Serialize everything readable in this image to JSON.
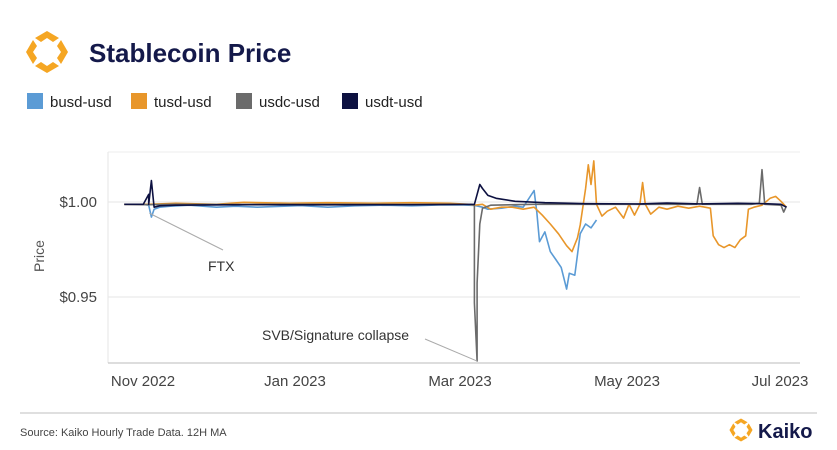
{
  "colors": {
    "busd": "#5b9bd5",
    "tusd": "#e8962a",
    "usdc": "#6b6b6b",
    "usdt": "#0d1141",
    "brand": "#f5a623",
    "title": "#14194a"
  },
  "brand": {
    "name": "Kaiko"
  },
  "source": "Source: Kaiko Hourly Trade Data. 12H MA",
  "chart_data": {
    "type": "line",
    "title": "Stablecoin Price",
    "ylabel": "Price",
    "xlabel": "",
    "ylim": [
      0.9195,
      1.0265
    ],
    "xlim": [
      "2022-10-26",
      "2023-07-08"
    ],
    "grid": true,
    "legend": "top-left",
    "yticks": [
      {
        "value": 1.0,
        "label": "$1.00"
      },
      {
        "value": 0.95,
        "label": "$0.95"
      }
    ],
    "xticks": [
      {
        "date": "2022-11-01",
        "label": "Nov 2022"
      },
      {
        "date": "2023-01-01",
        "label": "Jan 2023"
      },
      {
        "date": "2023-03-01",
        "label": "Mar 2023"
      },
      {
        "date": "2023-05-01",
        "label": "May 2023"
      },
      {
        "date": "2023-07-01",
        "label": "Jul 2023"
      }
    ],
    "annotations": [
      {
        "text": "FTX",
        "date": "2022-11-11",
        "value": 0.9995
      },
      {
        "text": "SVB/Signature collapse",
        "date": "2023-03-11",
        "value": 0.9205
      }
    ],
    "series": [
      {
        "name": "busd-usd",
        "color_key": "busd",
        "points": [
          [
            "2022-11-01",
            1.0
          ],
          [
            "2022-11-08",
            1.0
          ],
          [
            "2022-11-10",
            0.9995
          ],
          [
            "2022-11-11",
            0.9935
          ],
          [
            "2022-11-12",
            0.9975
          ],
          [
            "2022-11-14",
            0.9985
          ],
          [
            "2022-11-18",
            0.999
          ],
          [
            "2022-11-25",
            0.9995
          ],
          [
            "2022-12-05",
            0.9985
          ],
          [
            "2022-12-12",
            0.999
          ],
          [
            "2022-12-20",
            0.9985
          ],
          [
            "2023-01-05",
            0.9993
          ],
          [
            "2023-01-15",
            0.9985
          ],
          [
            "2023-01-25",
            0.9992
          ],
          [
            "2023-02-05",
            0.9995
          ],
          [
            "2023-02-15",
            0.9992
          ],
          [
            "2023-02-25",
            0.9996
          ],
          [
            "2023-03-05",
            0.9997
          ],
          [
            "2023-03-10",
            0.9994
          ],
          [
            "2023-03-13",
            0.9985
          ],
          [
            "2023-03-15",
            0.9975
          ],
          [
            "2023-03-20",
            0.998
          ],
          [
            "2023-03-25",
            0.999
          ],
          [
            "2023-03-28",
            0.9985
          ],
          [
            "2023-04-01",
            1.007
          ],
          [
            "2023-04-02",
            0.996
          ],
          [
            "2023-04-03",
            0.981
          ],
          [
            "2023-04-05",
            0.986
          ],
          [
            "2023-04-07",
            0.976
          ],
          [
            "2023-04-09",
            0.972
          ],
          [
            "2023-04-11",
            0.968
          ],
          [
            "2023-04-13",
            0.957
          ],
          [
            "2023-04-14",
            0.965
          ],
          [
            "2023-04-16",
            0.964
          ],
          [
            "2023-04-18",
            0.985
          ],
          [
            "2023-04-20",
            0.99
          ],
          [
            "2023-04-22",
            0.988
          ],
          [
            "2023-04-24",
            0.992
          ]
        ]
      },
      {
        "name": "tusd-usd",
        "color_key": "tusd",
        "points": [
          [
            "2022-11-01",
            1.0
          ],
          [
            "2022-11-10",
            1.0
          ],
          [
            "2022-11-20",
            1.0005
          ],
          [
            "2022-12-05",
            1.0
          ],
          [
            "2022-12-15",
            1.001
          ],
          [
            "2023-01-01",
            1.0005
          ],
          [
            "2023-01-15",
            1.0008
          ],
          [
            "2023-02-01",
            1.0005
          ],
          [
            "2023-02-15",
            1.0008
          ],
          [
            "2023-03-01",
            1.0005
          ],
          [
            "2023-03-08",
            1.0
          ],
          [
            "2023-03-10",
            0.9995
          ],
          [
            "2023-03-13",
            1.0
          ],
          [
            "2023-03-16",
            0.9975
          ],
          [
            "2023-03-20",
            0.9985
          ],
          [
            "2023-03-24",
            0.9985
          ],
          [
            "2023-03-28",
            0.9975
          ],
          [
            "2023-04-01",
            0.9985
          ],
          [
            "2023-04-04",
            0.9945
          ],
          [
            "2023-04-07",
            0.99
          ],
          [
            "2023-04-10",
            0.985
          ],
          [
            "2023-04-13",
            0.979
          ],
          [
            "2023-04-15",
            0.976
          ],
          [
            "2023-04-17",
            0.983
          ],
          [
            "2023-04-18",
            0.9895
          ],
          [
            "2023-04-20",
            1.008
          ],
          [
            "2023-04-21",
            1.02
          ],
          [
            "2023-04-22",
            1.01
          ],
          [
            "2023-04-23",
            1.022
          ],
          [
            "2023-04-24",
            1.0
          ],
          [
            "2023-04-26",
            0.994
          ],
          [
            "2023-04-28",
            0.9965
          ],
          [
            "2023-05-01",
            0.9985
          ],
          [
            "2023-05-04",
            0.993
          ],
          [
            "2023-05-06",
            1.0
          ],
          [
            "2023-05-08",
            0.9945
          ],
          [
            "2023-05-10",
            1.0
          ],
          [
            "2023-05-11",
            1.011
          ],
          [
            "2023-05-12",
            1.0
          ],
          [
            "2023-05-14",
            0.995
          ],
          [
            "2023-05-17",
            0.9985
          ],
          [
            "2023-05-20",
            0.9975
          ],
          [
            "2023-05-24",
            0.999
          ],
          [
            "2023-05-28",
            0.998
          ],
          [
            "2023-06-01",
            0.999
          ],
          [
            "2023-06-03",
            0.9985
          ],
          [
            "2023-06-05",
            0.998
          ],
          [
            "2023-06-06",
            0.984
          ],
          [
            "2023-06-08",
            0.9795
          ],
          [
            "2023-06-10",
            0.978
          ],
          [
            "2023-06-12",
            0.9795
          ],
          [
            "2023-06-14",
            0.978
          ],
          [
            "2023-06-16",
            0.982
          ],
          [
            "2023-06-18",
            0.984
          ],
          [
            "2023-06-19",
            0.9975
          ],
          [
            "2023-06-21",
            0.9985
          ],
          [
            "2023-06-24",
            0.9995
          ],
          [
            "2023-06-27",
            1.003
          ],
          [
            "2023-06-29",
            1.004
          ],
          [
            "2023-07-01",
            1.0015
          ],
          [
            "2023-07-03",
            0.9985
          ]
        ]
      },
      {
        "name": "usdc-usd",
        "color_key": "usdc",
        "points": [
          [
            "2022-11-01",
            1.0
          ],
          [
            "2022-11-10",
            0.9998
          ],
          [
            "2022-11-20",
            1.0
          ],
          [
            "2022-12-15",
            0.9999
          ],
          [
            "2023-01-15",
            1.0
          ],
          [
            "2023-02-15",
            0.9999
          ],
          [
            "2023-03-09",
            1.0
          ],
          [
            "2023-03-10",
            0.9995
          ],
          [
            "2023-03-10",
            0.95
          ],
          [
            "2023-03-11",
            0.9205
          ],
          [
            "2023-03-11",
            0.96
          ],
          [
            "2023-03-12",
            0.99
          ],
          [
            "2023-03-13",
            0.998
          ],
          [
            "2023-03-16",
            0.9995
          ],
          [
            "2023-04-01",
            1.0
          ],
          [
            "2023-05-01",
            1.0
          ],
          [
            "2023-05-31",
            1.0
          ],
          [
            "2023-06-01",
            1.0085
          ],
          [
            "2023-06-02",
            1.0
          ],
          [
            "2023-06-20",
            1.0
          ],
          [
            "2023-06-23",
            1.0005
          ],
          [
            "2023-06-24",
            1.0175
          ],
          [
            "2023-06-25",
            1.0
          ],
          [
            "2023-07-01",
            0.9995
          ],
          [
            "2023-07-02",
            0.996
          ],
          [
            "2023-07-03",
            0.999
          ]
        ]
      },
      {
        "name": "usdt-usd",
        "color_key": "usdt",
        "points": [
          [
            "2022-11-01",
            1.0
          ],
          [
            "2022-11-08",
            1.0
          ],
          [
            "2022-11-10",
            1.005
          ],
          [
            "2022-11-10",
            1.0
          ],
          [
            "2022-11-11",
            1.012
          ],
          [
            "2022-11-12",
            0.9985
          ],
          [
            "2022-11-14",
            0.9992
          ],
          [
            "2022-11-20",
            0.9995
          ],
          [
            "2022-12-15",
            0.9998
          ],
          [
            "2023-01-15",
            0.9997
          ],
          [
            "2023-02-15",
            0.9998
          ],
          [
            "2023-03-10",
            1.0
          ],
          [
            "2023-03-11",
            1.005
          ],
          [
            "2023-03-12",
            1.01
          ],
          [
            "2023-03-13",
            1.008
          ],
          [
            "2023-03-15",
            1.0045
          ],
          [
            "2023-03-18",
            1.003
          ],
          [
            "2023-03-25",
            1.0015
          ],
          [
            "2023-04-05",
            1.0008
          ],
          [
            "2023-04-20",
            1.0003
          ],
          [
            "2023-05-10",
            1.0002
          ],
          [
            "2023-05-20",
            1.0006
          ],
          [
            "2023-06-01",
            1.0002
          ],
          [
            "2023-06-15",
            1.0005
          ],
          [
            "2023-06-25",
            1.0003
          ],
          [
            "2023-07-01",
            1.0
          ],
          [
            "2023-07-03",
            0.9985
          ]
        ]
      }
    ]
  }
}
